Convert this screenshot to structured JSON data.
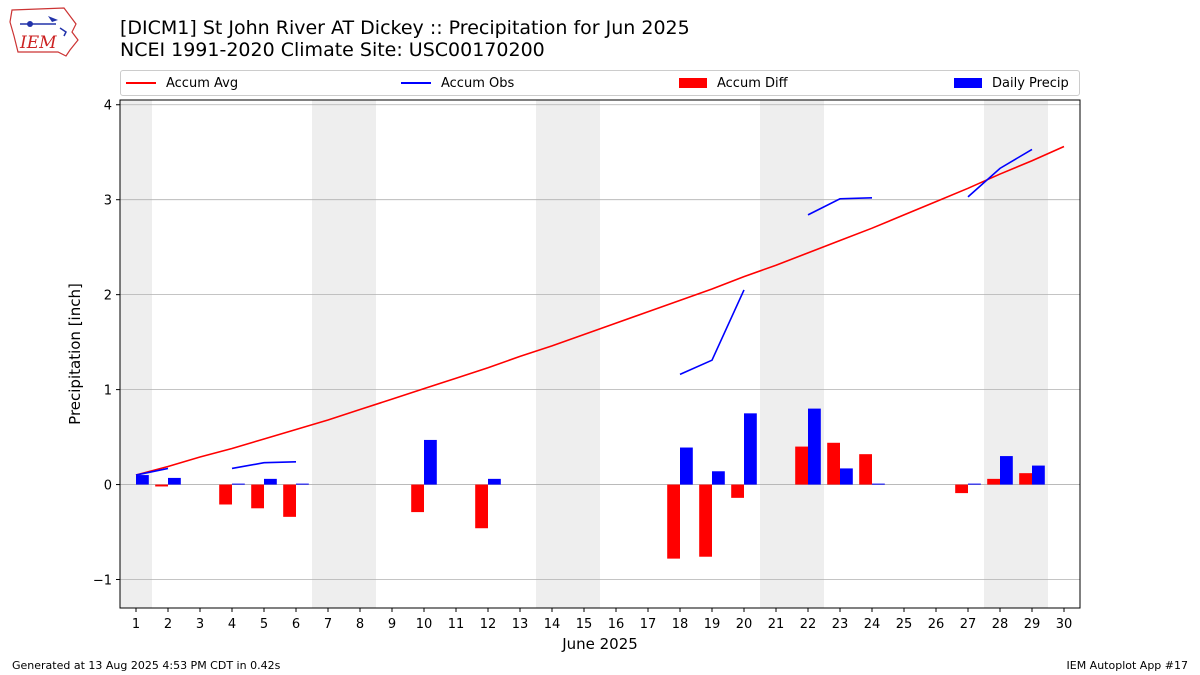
{
  "logo_text": "IEM",
  "title_line1": "[DICM1] St John River  AT Dickey :: Precipitation for Jun 2025",
  "title_line2": "NCEI 1991-2020 Climate Site: USC00170200",
  "footer_left": "Generated at 13 Aug 2025 4:53 PM CDT in 0.42s",
  "footer_right": "IEM Autoplot App #17",
  "colors": {
    "avg": "#ff0000",
    "obs": "#0000ff",
    "diff": "#ff0000",
    "daily": "#0000ff",
    "weekend": "#eeeeee",
    "grid": "#b0b0b0"
  },
  "chart_data": {
    "type": "bar",
    "title": "",
    "xlabel": "June 2025",
    "ylabel": "Precipitation [inch]",
    "ylim": [
      -1.3,
      4.05
    ],
    "yticks": [
      -1,
      0,
      1,
      2,
      3,
      4
    ],
    "ytick_labels": [
      "−1",
      "0",
      "1",
      "2",
      "3",
      "4"
    ],
    "xlim": [
      0.5,
      30.5
    ],
    "categories": [
      "1",
      "2",
      "3",
      "4",
      "5",
      "6",
      "7",
      "8",
      "9",
      "10",
      "11",
      "12",
      "13",
      "14",
      "15",
      "16",
      "17",
      "18",
      "19",
      "20",
      "21",
      "22",
      "23",
      "24",
      "25",
      "26",
      "27",
      "28",
      "29",
      "30"
    ],
    "grid": "horizontal",
    "legend_position": "top",
    "weekend_shading": [
      [
        0.5,
        1.5
      ],
      [
        6.5,
        8.5
      ],
      [
        13.5,
        15.5
      ],
      [
        20.5,
        22.5
      ],
      [
        27.5,
        29.5
      ]
    ],
    "series": [
      {
        "name": "Accum Avg",
        "kind": "line",
        "x": [
          1,
          2,
          3,
          4,
          5,
          6,
          7,
          8,
          9,
          10,
          11,
          12,
          13,
          14,
          15,
          16,
          17,
          18,
          19,
          20,
          21,
          22,
          23,
          24,
          25,
          26,
          27,
          28,
          29,
          30
        ],
        "values": [
          0.1,
          0.19,
          0.29,
          0.38,
          0.48,
          0.58,
          0.68,
          0.79,
          0.9,
          1.01,
          1.12,
          1.23,
          1.35,
          1.46,
          1.58,
          1.7,
          1.82,
          1.94,
          2.06,
          2.19,
          2.31,
          2.44,
          2.57,
          2.7,
          2.84,
          2.98,
          3.12,
          3.27,
          3.41,
          3.56
        ]
      },
      {
        "name": "Accum Obs",
        "kind": "line",
        "x": [
          1,
          2,
          3,
          4,
          5,
          6,
          7,
          8,
          9,
          10,
          11,
          12,
          13,
          14,
          15,
          16,
          17,
          18,
          19,
          20,
          21,
          22,
          23,
          24,
          25,
          26,
          27,
          28,
          29,
          30
        ],
        "values": [
          0.1,
          0.17,
          null,
          0.17,
          0.23,
          0.24,
          null,
          null,
          null,
          null,
          null,
          null,
          null,
          null,
          null,
          null,
          null,
          1.16,
          1.31,
          2.05,
          null,
          2.84,
          3.01,
          3.02,
          null,
          null,
          3.03,
          3.33,
          3.53,
          null
        ]
      },
      {
        "name": "Accum Diff",
        "kind": "bar",
        "x": [
          1,
          2,
          4,
          5,
          6,
          10,
          12,
          18,
          19,
          20,
          22,
          23,
          24,
          27,
          28,
          29
        ],
        "values": [
          0.0,
          -0.02,
          -0.21,
          -0.25,
          -0.34,
          -0.29,
          -0.46,
          -0.78,
          -0.76,
          -0.14,
          0.4,
          0.44,
          0.32,
          -0.09,
          0.06,
          0.12
        ]
      },
      {
        "name": "Daily Precip",
        "kind": "bar",
        "x": [
          1,
          2,
          4,
          5,
          6,
          10,
          12,
          18,
          19,
          20,
          22,
          23,
          24,
          27,
          28,
          29
        ],
        "values": [
          0.1,
          0.07,
          0.01,
          0.06,
          0.01,
          0.47,
          0.06,
          0.39,
          0.14,
          0.75,
          0.8,
          0.17,
          0.01,
          0.01,
          0.3,
          0.2
        ]
      }
    ]
  }
}
